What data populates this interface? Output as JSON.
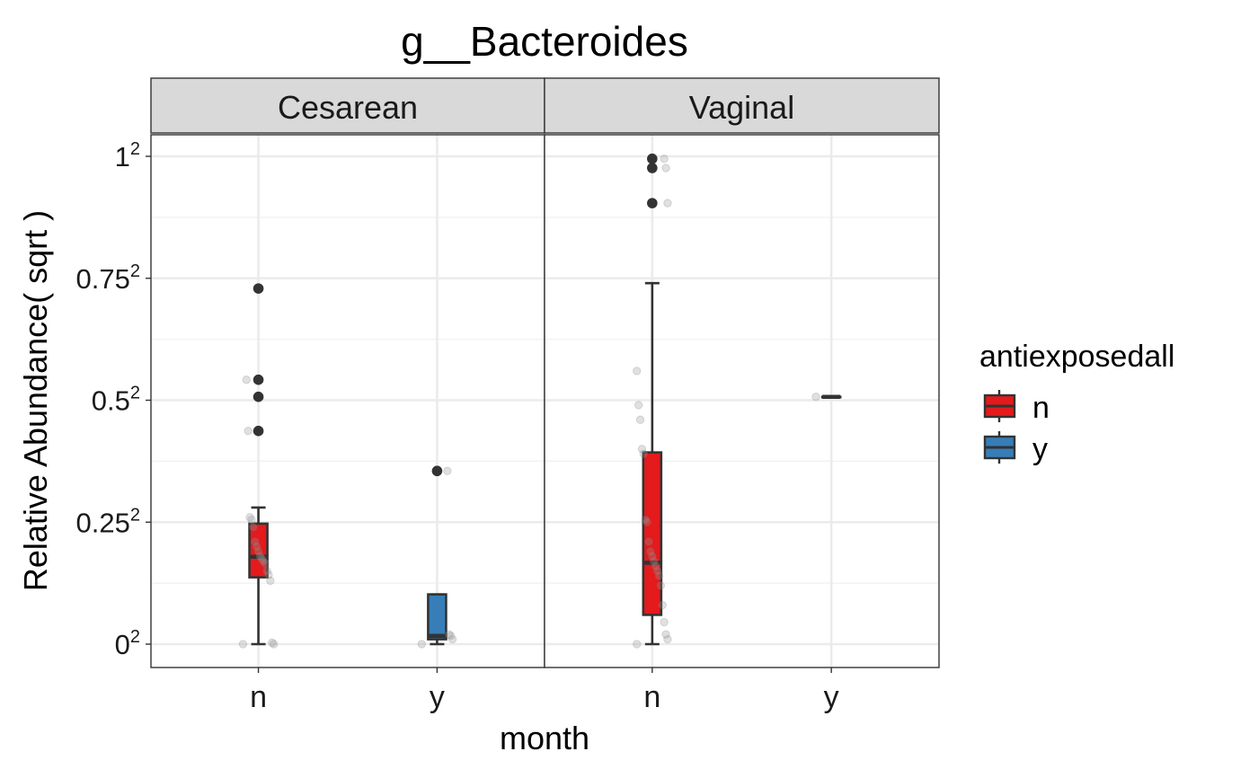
{
  "chart_data": {
    "type": "box",
    "title": "g__Bacteroides",
    "xlabel": "month",
    "ylabel": "Relative Abundance( sqrt )",
    "y_scale": "sqrt",
    "ylim": [
      0,
      1.04
    ],
    "grid": true,
    "y_ticks": [
      {
        "value": 0,
        "base": "0",
        "exp": "2"
      },
      {
        "value": 0.25,
        "base": "0.25",
        "exp": "2"
      },
      {
        "value": 0.5,
        "base": "0.5",
        "exp": "2"
      },
      {
        "value": 0.75,
        "base": "0.75",
        "exp": "2"
      },
      {
        "value": 1,
        "base": "1",
        "exp": "2"
      }
    ],
    "categories": [
      "n",
      "y"
    ],
    "legend": {
      "title": "antiexposedall",
      "placement": "right",
      "entries": [
        {
          "label": "n",
          "color": "#E41A1C"
        },
        {
          "label": "y",
          "color": "#377EB8"
        }
      ]
    },
    "facets": [
      {
        "label": "Cesarean",
        "boxes": [
          {
            "category": "n",
            "group": "n",
            "color": "#E41A1C",
            "whisker_low": 0,
            "q1": 0.137,
            "median": 0.179,
            "q3": 0.247,
            "whisker_high": 0.28,
            "outliers": [
              0.437,
              0.507,
              0.542,
              0.729
            ],
            "points": [
              0,
              0,
              0.003,
              0.13,
              0.142,
              0.15,
              0.165,
              0.17,
              0.175,
              0.18,
              0.19,
              0.2,
              0.21,
              0.24,
              0.255,
              0.26,
              0.437,
              0.542
            ]
          },
          {
            "category": "y",
            "group": "y",
            "color": "#377EB8",
            "whisker_low": 0,
            "q1": 0.01,
            "median": 0.017,
            "q3": 0.102,
            "whisker_high": 0.102,
            "outliers": [
              0.355
            ],
            "points": [
              0,
              0.01,
              0.017,
              0.02,
              0.355
            ]
          }
        ]
      },
      {
        "label": "Vaginal",
        "boxes": [
          {
            "category": "n",
            "group": "n",
            "color": "#E41A1C",
            "whisker_low": 0,
            "q1": 0.06,
            "median": 0.167,
            "q3": 0.393,
            "whisker_high": 0.74,
            "outliers": [
              0.904,
              0.976,
              0.995
            ],
            "points": [
              0,
              0.01,
              0.02,
              0.045,
              0.08,
              0.12,
              0.14,
              0.15,
              0.16,
              0.17,
              0.18,
              0.19,
              0.21,
              0.25,
              0.255,
              0.39,
              0.4,
              0.46,
              0.49,
              0.56,
              0.904,
              0.976,
              0.995
            ]
          },
          {
            "category": "y",
            "group": "y",
            "color": "#377EB8",
            "whisker_low": 0.507,
            "q1": 0.507,
            "median": 0.507,
            "q3": 0.507,
            "whisker_high": 0.507,
            "outliers": [],
            "points": [
              0.507
            ]
          }
        ]
      }
    ]
  }
}
